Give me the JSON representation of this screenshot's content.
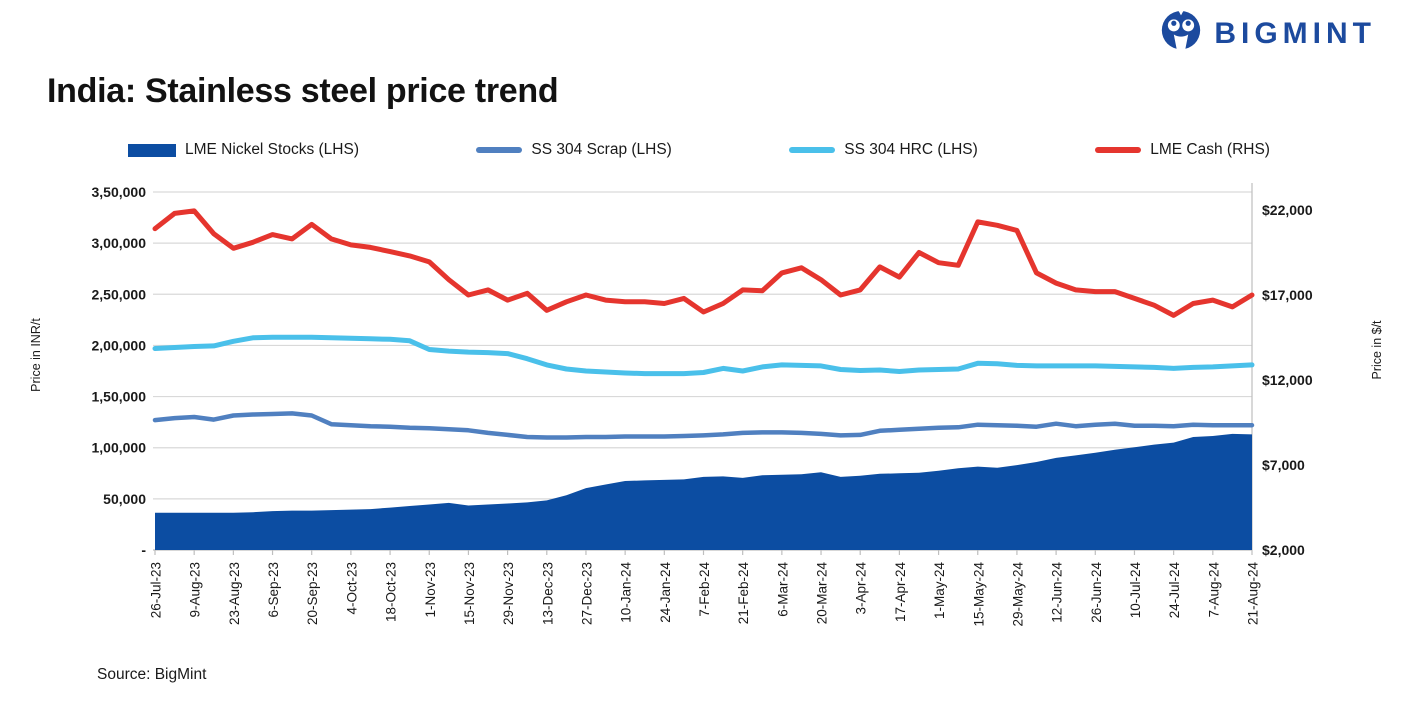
{
  "brand": {
    "name": "BIGMINT",
    "color": "#1c4a9e"
  },
  "title": "India: Stainless steel price trend",
  "source": "Source: BigMint",
  "legend": [
    {
      "label": "LME Nickel Stocks (LHS)",
      "color": "#0c4da2",
      "swatch": "bar"
    },
    {
      "label": "SS 304 Scrap (LHS)",
      "color": "#5080c0",
      "swatch": "line"
    },
    {
      "label": "SS 304 HRC (LHS)",
      "color": "#4ac0ea",
      "swatch": "line"
    },
    {
      "label": "LME Cash (RHS)",
      "color": "#e5352e",
      "swatch": "line"
    }
  ],
  "chart_data": {
    "type": "combo: area + line, dual axis, weekly points",
    "x_tick_labels": [
      "26-Jul-23",
      "9-Aug-23",
      "23-Aug-23",
      "6-Sep-23",
      "20-Sep-23",
      "4-Oct-23",
      "18-Oct-23",
      "1-Nov-23",
      "15-Nov-23",
      "29-Nov-23",
      "13-Dec-23",
      "27-Dec-23",
      "10-Jan-24",
      "24-Jan-24",
      "7-Feb-24",
      "21-Feb-24",
      "6-Mar-24",
      "20-Mar-24",
      "3-Apr-24",
      "17-Apr-24",
      "1-May-24",
      "15-May-24",
      "29-May-24",
      "12-Jun-24",
      "26-Jun-24",
      "10-Jul-24",
      "24-Jul-24",
      "7-Aug-24",
      "21-Aug-24"
    ],
    "left_axis": {
      "title": "Price in INR/t",
      "range": [
        0,
        350000
      ],
      "step": 50000,
      "ticks": [
        "3,50,000",
        "3,00,000",
        "2,50,000",
        "2,00,000",
        "1,50,000",
        "1,00,000",
        "50,000",
        "-"
      ]
    },
    "right_axis": {
      "title": "Price in $/t",
      "range": [
        2000,
        22000
      ],
      "step": 5000,
      "ticks": [
        "$22,000",
        "$17,000",
        "$12,000",
        "$7,000",
        "$2,000"
      ]
    },
    "grid": "horizontal only",
    "series": [
      {
        "name": "LME Nickel Stocks (LHS)",
        "type": "area",
        "axis": "left",
        "color": "#0c4da2",
        "values": [
          36500,
          36500,
          36500,
          36500,
          36500,
          37000,
          38000,
          38500,
          38500,
          39000,
          39500,
          40000,
          41500,
          43000,
          44500,
          46000,
          43500,
          44500,
          45500,
          46500,
          48500,
          53500,
          60500,
          64000,
          67500,
          68000,
          68500,
          69000,
          71500,
          72000,
          70500,
          73000,
          73500,
          74000,
          76000,
          71500,
          72500,
          74500,
          75000,
          75500,
          77500,
          80000,
          81500,
          80500,
          83000,
          86000,
          90000,
          92500,
          95000,
          98000,
          100500,
          103000,
          105000,
          110500,
          111500,
          113500,
          113000
        ]
      },
      {
        "name": "SS 304 Scrap (LHS)",
        "type": "line",
        "axis": "left",
        "color": "#5080c0",
        "values": [
          127000,
          129000,
          130000,
          127500,
          131500,
          132500,
          133000,
          133500,
          131500,
          123000,
          122000,
          121000,
          120500,
          119500,
          119000,
          118000,
          117000,
          114500,
          112500,
          110500,
          110000,
          110000,
          110500,
          110500,
          111000,
          111000,
          111000,
          111500,
          112000,
          113000,
          114500,
          115000,
          115000,
          114500,
          113500,
          112000,
          112500,
          116500,
          117500,
          118500,
          119500,
          120000,
          122500,
          122000,
          121500,
          120500,
          123500,
          121000,
          122500,
          123500,
          121500,
          121500,
          121000,
          122500,
          122000,
          122000,
          122000
        ]
      },
      {
        "name": "SS 304 HRC (LHS)",
        "type": "line",
        "axis": "left",
        "color": "#4ac0ea",
        "values": [
          197000,
          198000,
          199000,
          199500,
          204000,
          207500,
          208000,
          208000,
          208000,
          207500,
          207000,
          206500,
          206000,
          204500,
          196000,
          194500,
          193500,
          193000,
          192000,
          187000,
          181000,
          177000,
          175000,
          174000,
          173000,
          172500,
          172500,
          172500,
          173500,
          177500,
          175000,
          179000,
          181000,
          180500,
          180000,
          176500,
          175500,
          176000,
          174500,
          176000,
          176500,
          177000,
          182500,
          182000,
          180500,
          180000,
          180000,
          180000,
          180000,
          179500,
          179000,
          178500,
          177500,
          178500,
          179000,
          180000,
          181000
        ]
      },
      {
        "name": "LME Cash (RHS)",
        "type": "line",
        "axis": "right",
        "color": "#e5352e",
        "values": [
          20900,
          21800,
          21950,
          20600,
          19750,
          20100,
          20550,
          20300,
          21150,
          20300,
          19950,
          19800,
          19550,
          19300,
          18950,
          17900,
          17000,
          17300,
          16700,
          17100,
          16100,
          16600,
          17000,
          16700,
          16600,
          16600,
          16500,
          16800,
          16000,
          16500,
          17300,
          17250,
          18300,
          18600,
          17900,
          17000,
          17300,
          18650,
          18050,
          19500,
          18900,
          18750,
          21300,
          21100,
          20800,
          18300,
          17700,
          17300,
          17200,
          17200,
          16800,
          16400,
          15800,
          16500,
          16700,
          16300,
          17000
        ]
      }
    ]
  }
}
